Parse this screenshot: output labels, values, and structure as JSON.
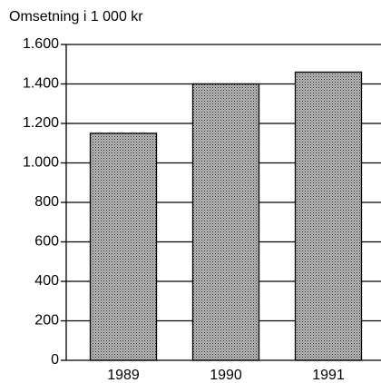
{
  "chart_data": {
    "type": "bar",
    "title": "Omsetning i 1 000 kr",
    "categories": [
      "1989",
      "1990",
      "1991"
    ],
    "values": [
      1150,
      1400,
      1460
    ],
    "color": "#8a8a8a",
    "ylim": [
      0,
      1600
    ],
    "yticks": [
      0,
      200,
      400,
      600,
      800,
      {
        "value": 1000,
        "label": "1.000"
      },
      {
        "value": 1200,
        "label": "1.200"
      },
      {
        "value": 1400,
        "label": "1.400"
      },
      {
        "value": 1600,
        "label": "1.600"
      }
    ],
    "grid": true
  }
}
